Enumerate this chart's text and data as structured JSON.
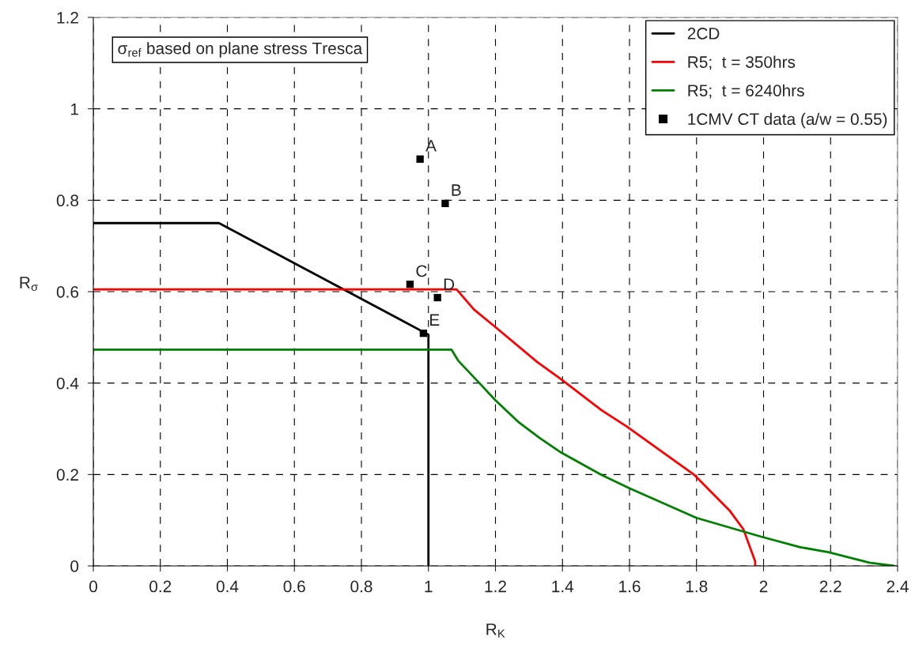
{
  "chart_data": {
    "type": "line",
    "xlabel": "R$_{K}$",
    "ylabel": "R$_{σ}$",
    "xlim": [
      0,
      2.4
    ],
    "ylim": [
      0,
      1.2
    ],
    "xticks": [
      0,
      0.2,
      0.4,
      0.6,
      0.8,
      1,
      1.2,
      1.4,
      1.6,
      1.8,
      2,
      2.2,
      2.4
    ],
    "yticks": [
      0,
      0.2,
      0.4,
      0.6,
      0.8,
      1,
      1.2
    ],
    "grid": true,
    "legend": "top right",
    "line_style": "solid",
    "series": [
      {
        "name": "2CD",
        "color": "#000000",
        "x": [
          0,
          0.375,
          1.0,
          1.0
        ],
        "values": [
          0.75,
          0.75,
          0.506,
          0
        ]
      },
      {
        "name": "R5;  t = 350hrs",
        "color": "#ff0000",
        "x": [
          0,
          1.084,
          1.136,
          1.199,
          1.325,
          1.397,
          1.514,
          1.592,
          1.792,
          1.9,
          1.94,
          1.96,
          1.975,
          1.975
        ],
        "values": [
          0.605,
          0.605,
          0.561,
          0.523,
          0.446,
          0.408,
          0.342,
          0.305,
          0.2,
          0.12,
          0.08,
          0.04,
          0.01,
          0
        ]
      },
      {
        "name": "R5;  t = 6240hrs",
        "color": "#008000",
        "x": [
          0,
          1.069,
          1.089,
          1.152,
          1.199,
          1.27,
          1.332,
          1.396,
          1.514,
          1.6,
          1.8,
          1.993,
          2.11,
          2.194,
          2.316,
          2.39
        ],
        "values": [
          0.473,
          0.473,
          0.449,
          0.4,
          0.363,
          0.314,
          0.28,
          0.248,
          0.2,
          0.17,
          0.105,
          0.064,
          0.041,
          0.03,
          0.007,
          0
        ]
      },
      {
        "name": "1CMV CT data (a/w = 0.55)",
        "color": "#000000",
        "type": "scatter",
        "marker": "square",
        "x": [
          0.975,
          1.05,
          0.945,
          1.027,
          0.985
        ],
        "values": [
          0.89,
          0.793,
          0.616,
          0.587,
          0.509
        ]
      }
    ],
    "annotations": [
      "σ$_{ref}$ based on plane stress Tresca",
      {
        "text": "A",
        "x": 0.975,
        "y": 0.89
      },
      {
        "text": "B",
        "x": 1.05,
        "y": 0.793
      },
      {
        "text": "C",
        "x": 0.945,
        "y": 0.616
      },
      {
        "text": "D",
        "x": 1.027,
        "y": 0.587
      },
      {
        "text": "E",
        "x": 0.985,
        "y": 0.509
      }
    ]
  }
}
